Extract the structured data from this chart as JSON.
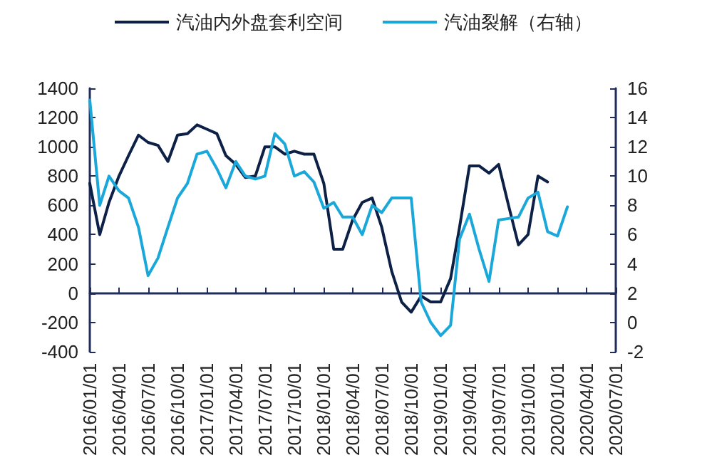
{
  "chart_data": {
    "type": "line",
    "x": [
      "2016-01",
      "2016-02",
      "2016-03",
      "2016-04",
      "2016-05",
      "2016-06",
      "2016-07",
      "2016-08",
      "2016-09",
      "2016-10",
      "2016-11",
      "2016-12",
      "2017-01",
      "2017-02",
      "2017-03",
      "2017-04",
      "2017-05",
      "2017-06",
      "2017-07",
      "2017-08",
      "2017-09",
      "2017-10",
      "2017-11",
      "2017-12",
      "2018-01",
      "2018-02",
      "2018-03",
      "2018-04",
      "2018-05",
      "2018-06",
      "2018-07",
      "2018-08",
      "2018-09",
      "2018-10",
      "2018-11",
      "2018-12",
      "2019-01",
      "2019-02",
      "2019-03",
      "2019-04",
      "2019-05",
      "2019-06",
      "2019-07",
      "2019-08",
      "2019-09",
      "2019-10",
      "2019-11",
      "2019-12",
      "2020-01",
      "2020-02"
    ],
    "series": [
      {
        "name": "汽油内外盘套利空间",
        "color": "#0d2147",
        "values": [
          750,
          400,
          620,
          800,
          940,
          1080,
          1030,
          1010,
          900,
          1080,
          1090,
          1150,
          1120,
          1090,
          940,
          880,
          790,
          800,
          1000,
          1000,
          950,
          970,
          950,
          950,
          750,
          300,
          300,
          500,
          620,
          650,
          450,
          150,
          -60,
          -130,
          -20,
          -60,
          -60,
          100,
          450,
          870,
          870,
          820,
          880,
          600,
          330,
          400,
          800,
          760,
          null,
          null
        ]
      },
      {
        "name": "汽油裂解（右轴）",
        "color": "#1aa7d9",
        "axis": "y2",
        "values": [
          15.2,
          8,
          10,
          9,
          8.5,
          6.5,
          3.2,
          4.4,
          6.5,
          8.5,
          9.5,
          11.5,
          11.7,
          10.5,
          9.2,
          11,
          10,
          9.8,
          10,
          12.9,
          12.2,
          10,
          10.3,
          9.6,
          7.8,
          8.2,
          7.2,
          7.2,
          6,
          8,
          7.5,
          8.5,
          8.5,
          8.5,
          1.4,
          0,
          -0.9,
          -0.2,
          5.7,
          7.4,
          5,
          2.8,
          7,
          7.1,
          7.2,
          8.5,
          8.9,
          6.2,
          5.9,
          7.9
        ]
      }
    ],
    "xlim": [
      "2016-01-01",
      "2020-07-01"
    ],
    "xticks": [
      {
        "value": "2016-01-01",
        "label": "2016/01/01"
      },
      {
        "value": "2016-04-01",
        "label": "2016/04/01"
      },
      {
        "value": "2016-07-01",
        "label": "2016/07/01"
      },
      {
        "value": "2016-10-01",
        "label": "2016/10/01"
      },
      {
        "value": "2017-01-01",
        "label": "2017/01/01"
      },
      {
        "value": "2017-04-01",
        "label": "2017/04/01"
      },
      {
        "value": "2017-07-01",
        "label": "2017/07/01"
      },
      {
        "value": "2017-10-01",
        "label": "2017/10/01"
      },
      {
        "value": "2018-01-01",
        "label": "2018/01/01"
      },
      {
        "value": "2018-04-01",
        "label": "2018/04/01"
      },
      {
        "value": "2018-07-01",
        "label": "2018/07/01"
      },
      {
        "value": "2018-10-01",
        "label": "2018/10/01"
      },
      {
        "value": "2019-01-01",
        "label": "2019/01/01"
      },
      {
        "value": "2019-04-01",
        "label": "2019/04/01"
      },
      {
        "value": "2019-07-01",
        "label": "2019/07/01"
      },
      {
        "value": "2019-10-01",
        "label": "2019/10/01"
      },
      {
        "value": "2020-01-01",
        "label": "2020/01/01"
      },
      {
        "value": "2020-04-01",
        "label": "2020/04/01"
      },
      {
        "value": "2020-07-01",
        "label": "2020/07/01"
      }
    ],
    "ylim": [
      -400,
      1400
    ],
    "yticks": [
      -400,
      -200,
      0,
      200,
      400,
      600,
      800,
      1000,
      1200,
      1400
    ],
    "y2lim": [
      -2,
      16
    ],
    "y2ticks": [
      -2,
      0,
      2,
      4,
      6,
      8,
      10,
      12,
      14,
      16
    ],
    "grid": false,
    "legend": "top",
    "marker": "none",
    "line_style": "solid"
  }
}
